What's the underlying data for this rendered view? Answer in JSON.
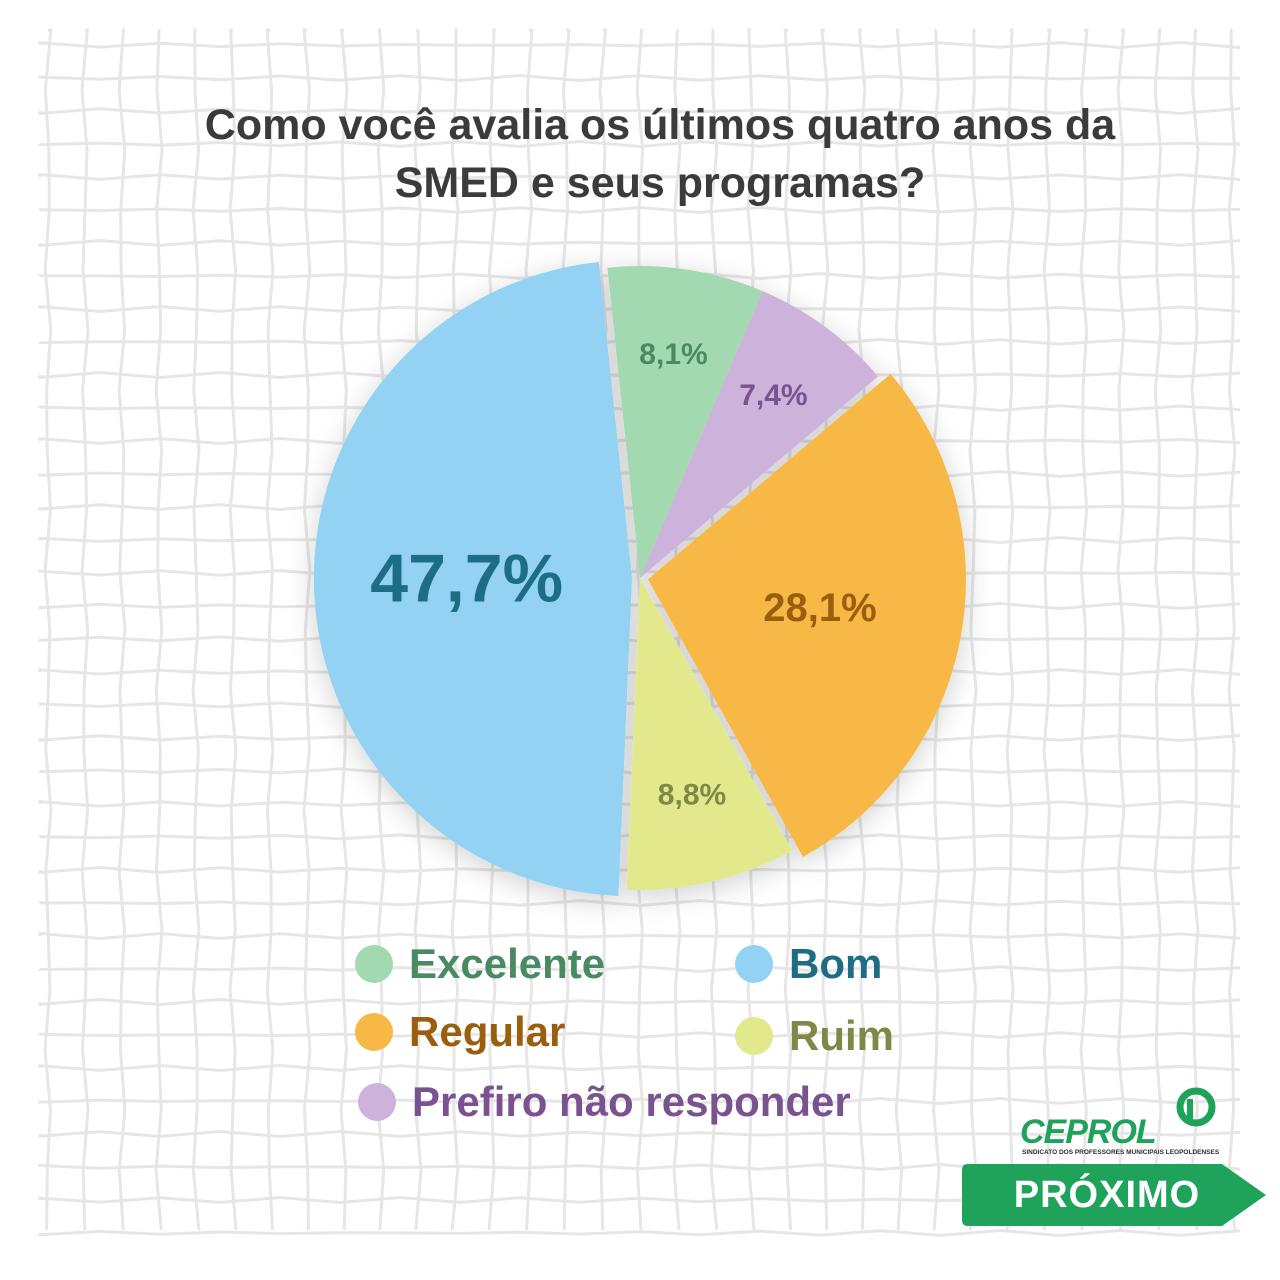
{
  "title_lines": [
    "Como você avalia os últimos quatro anos da",
    "SMED e seus programas?"
  ],
  "chart_data": {
    "type": "pie",
    "title": "Como você avalia os últimos quatro anos da SMED e seus programas?",
    "slices": [
      {
        "label": "Excelente",
        "value": 8.1,
        "value_label": "8,1%",
        "color": "#a3d9b1",
        "text_color": "#4a8a62",
        "exploded": false
      },
      {
        "label": "Prefiro não responder",
        "value": 7.4,
        "value_label": "7,4%",
        "color": "#cdb3dc",
        "text_color": "#7a528f",
        "exploded": false
      },
      {
        "label": "Regular",
        "value": 28.1,
        "value_label": "28,1%",
        "color": "#f7b845",
        "text_color": "#9a5e0f",
        "exploded": true
      },
      {
        "label": "Ruim",
        "value": 8.8,
        "value_label": "8,8%",
        "color": "#e2e88c",
        "text_color": "#7f8845",
        "exploded": false
      },
      {
        "label": "Bom",
        "value": 47.7,
        "value_label": "47,7%",
        "color": "#93d2f2",
        "text_color": "#1d6e84",
        "exploded": true
      }
    ],
    "legend": "bottom"
  },
  "legend": [
    {
      "label": "Excelente",
      "color": "#a3d9b1",
      "text_color": "#4a8a62"
    },
    {
      "label": "Bom",
      "color": "#93d2f2",
      "text_color": "#1d6e84"
    },
    {
      "label": "Regular",
      "color": "#f7b845",
      "text_color": "#9a5e0f"
    },
    {
      "label": "Ruim",
      "color": "#e2e88c",
      "text_color": "#7f8845"
    },
    {
      "label": "Prefiro não responder",
      "color": "#cdb3dc",
      "text_color": "#7a528f"
    }
  ],
  "logo": {
    "name": "CEPROL",
    "subtitle": "SINDICATO DOS PROFESSORES MUNICIPAIS LEOPOLDENSES",
    "color": "#1fa35b"
  },
  "next_button": {
    "label": "PRÓXIMO",
    "color": "#1fa35b"
  }
}
